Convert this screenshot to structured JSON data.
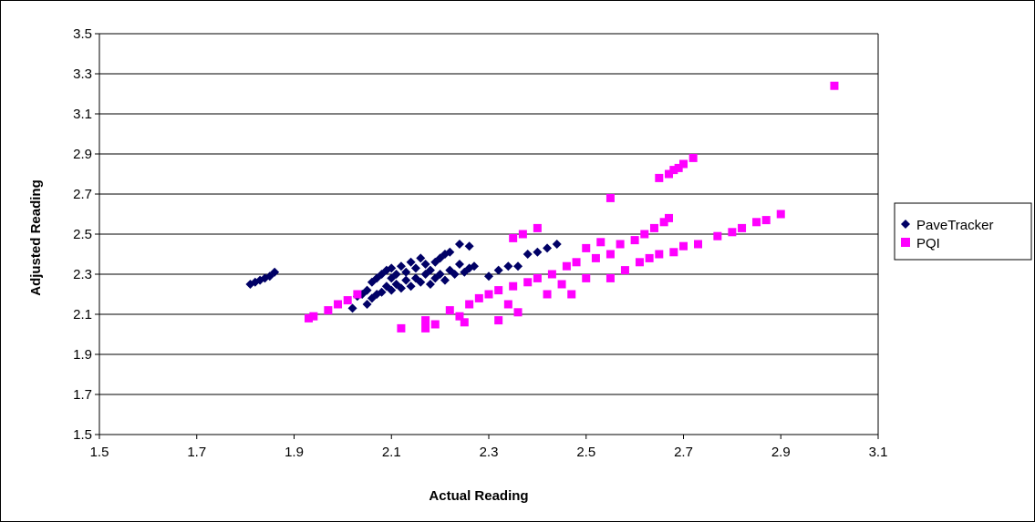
{
  "chart_data": {
    "type": "scatter",
    "title": "",
    "xlabel": "Actual Reading",
    "ylabel": "Adjusted Reading",
    "xlim": [
      1.5,
      3.1
    ],
    "ylim": [
      1.5,
      3.5
    ],
    "x_ticks": [
      "1.5",
      "1.7",
      "1.9",
      "2.1",
      "2.3",
      "2.5",
      "2.7",
      "2.9",
      "3.1"
    ],
    "y_ticks": [
      "1.5",
      "1.7",
      "1.9",
      "2.1",
      "2.3",
      "2.5",
      "2.7",
      "2.9",
      "3.1",
      "3.3",
      "3.5"
    ],
    "grid": "horizontal",
    "legend": "right",
    "series": [
      {
        "name": "PaveTracker",
        "marker": "diamond",
        "color": "#000066",
        "points": [
          [
            1.81,
            2.25
          ],
          [
            1.82,
            2.26
          ],
          [
            1.83,
            2.27
          ],
          [
            1.84,
            2.28
          ],
          [
            1.85,
            2.29
          ],
          [
            1.86,
            2.31
          ],
          [
            2.02,
            2.13
          ],
          [
            2.03,
            2.19
          ],
          [
            2.04,
            2.2
          ],
          [
            2.05,
            2.15
          ],
          [
            2.05,
            2.22
          ],
          [
            2.06,
            2.18
          ],
          [
            2.06,
            2.26
          ],
          [
            2.07,
            2.2
          ],
          [
            2.07,
            2.28
          ],
          [
            2.08,
            2.21
          ],
          [
            2.08,
            2.3
          ],
          [
            2.09,
            2.24
          ],
          [
            2.09,
            2.32
          ],
          [
            2.1,
            2.22
          ],
          [
            2.1,
            2.28
          ],
          [
            2.1,
            2.33
          ],
          [
            2.11,
            2.25
          ],
          [
            2.11,
            2.3
          ],
          [
            2.12,
            2.23
          ],
          [
            2.12,
            2.34
          ],
          [
            2.13,
            2.27
          ],
          [
            2.13,
            2.31
          ],
          [
            2.14,
            2.24
          ],
          [
            2.14,
            2.36
          ],
          [
            2.15,
            2.28
          ],
          [
            2.15,
            2.33
          ],
          [
            2.16,
            2.26
          ],
          [
            2.16,
            2.38
          ],
          [
            2.17,
            2.3
          ],
          [
            2.17,
            2.35
          ],
          [
            2.18,
            2.25
          ],
          [
            2.18,
            2.32
          ],
          [
            2.19,
            2.28
          ],
          [
            2.19,
            2.36
          ],
          [
            2.2,
            2.3
          ],
          [
            2.2,
            2.38
          ],
          [
            2.21,
            2.27
          ],
          [
            2.21,
            2.4
          ],
          [
            2.22,
            2.32
          ],
          [
            2.22,
            2.41
          ],
          [
            2.23,
            2.3
          ],
          [
            2.24,
            2.35
          ],
          [
            2.24,
            2.45
          ],
          [
            2.25,
            2.31
          ],
          [
            2.26,
            2.33
          ],
          [
            2.26,
            2.44
          ],
          [
            2.27,
            2.34
          ],
          [
            2.3,
            2.29
          ],
          [
            2.32,
            2.32
          ],
          [
            2.34,
            2.34
          ],
          [
            2.36,
            2.34
          ],
          [
            2.38,
            2.4
          ],
          [
            2.4,
            2.41
          ],
          [
            2.42,
            2.43
          ],
          [
            2.44,
            2.45
          ]
        ]
      },
      {
        "name": "PQI",
        "marker": "square",
        "color": "#FF00FF",
        "points": [
          [
            1.93,
            2.08
          ],
          [
            1.94,
            2.09
          ],
          [
            1.97,
            2.12
          ],
          [
            1.99,
            2.15
          ],
          [
            2.01,
            2.17
          ],
          [
            2.03,
            2.2
          ],
          [
            2.12,
            2.03
          ],
          [
            2.17,
            2.03
          ],
          [
            2.17,
            2.07
          ],
          [
            2.19,
            2.05
          ],
          [
            2.22,
            2.12
          ],
          [
            2.24,
            2.09
          ],
          [
            2.25,
            2.06
          ],
          [
            2.26,
            2.15
          ],
          [
            2.28,
            2.18
          ],
          [
            2.3,
            2.2
          ],
          [
            2.32,
            2.07
          ],
          [
            2.32,
            2.22
          ],
          [
            2.34,
            2.15
          ],
          [
            2.35,
            2.24
          ],
          [
            2.35,
            2.48
          ],
          [
            2.36,
            2.11
          ],
          [
            2.37,
            2.5
          ],
          [
            2.38,
            2.26
          ],
          [
            2.4,
            2.28
          ],
          [
            2.4,
            2.53
          ],
          [
            2.42,
            2.2
          ],
          [
            2.43,
            2.3
          ],
          [
            2.45,
            2.25
          ],
          [
            2.46,
            2.34
          ],
          [
            2.47,
            2.2
          ],
          [
            2.48,
            2.36
          ],
          [
            2.5,
            2.28
          ],
          [
            2.5,
            2.43
          ],
          [
            2.52,
            2.38
          ],
          [
            2.53,
            2.46
          ],
          [
            2.55,
            2.28
          ],
          [
            2.55,
            2.4
          ],
          [
            2.55,
            2.68
          ],
          [
            2.57,
            2.45
          ],
          [
            2.58,
            2.32
          ],
          [
            2.6,
            2.47
          ],
          [
            2.61,
            2.36
          ],
          [
            2.62,
            2.5
          ],
          [
            2.63,
            2.38
          ],
          [
            2.64,
            2.53
          ],
          [
            2.65,
            2.4
          ],
          [
            2.65,
            2.78
          ],
          [
            2.66,
            2.56
          ],
          [
            2.67,
            2.58
          ],
          [
            2.67,
            2.8
          ],
          [
            2.68,
            2.41
          ],
          [
            2.68,
            2.82
          ],
          [
            2.69,
            2.83
          ],
          [
            2.7,
            2.44
          ],
          [
            2.7,
            2.85
          ],
          [
            2.72,
            2.88
          ],
          [
            2.73,
            2.45
          ],
          [
            2.77,
            2.49
          ],
          [
            2.8,
            2.51
          ],
          [
            2.82,
            2.53
          ],
          [
            2.85,
            2.56
          ],
          [
            2.87,
            2.57
          ],
          [
            2.9,
            2.6
          ],
          [
            3.01,
            3.24
          ]
        ]
      }
    ]
  },
  "colors": {
    "grid": "#000000",
    "frame": "#000000",
    "background": "#ffffff"
  },
  "legend": {
    "items": [
      "PaveTracker",
      "PQI"
    ]
  }
}
